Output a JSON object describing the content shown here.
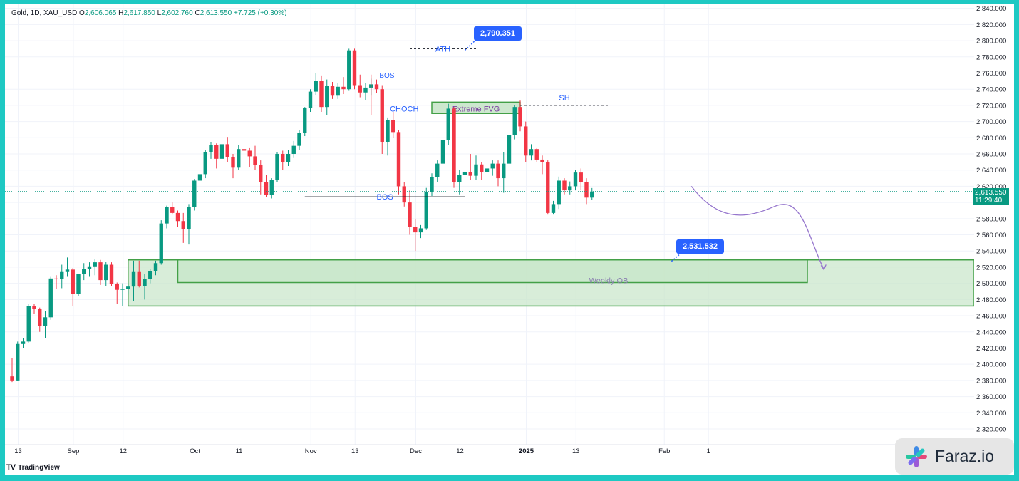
{
  "header": {
    "symbol": "Gold, 1D, XAU_USD",
    "open_label": "O",
    "open": "2,606.065",
    "high_label": "H",
    "high": "2,617.850",
    "low_label": "L",
    "low": "2,602.760",
    "close_label": "C",
    "close": "2,613.550",
    "change": "+7.725 (+0.30%)"
  },
  "colors": {
    "up": "#089981",
    "down": "#f23645",
    "zone_fill": "#c8e6c9",
    "zone_stroke": "#43a047",
    "annotation": "#2962ff",
    "arrow": "#9575cd",
    "frame": "#1ec9c3"
  },
  "branding": {
    "tradingview": "TradingView",
    "watermark": "Faraz.io",
    "watermark_icon": "asterisk-logo-icon"
  },
  "price_label": {
    "price": "2,613.550",
    "countdown": "11:29:40"
  },
  "callouts": {
    "ath_value": "2,790.351",
    "ob_value": "2,531.532"
  },
  "chart_data": {
    "type": "candlestick",
    "title": "Gold, 1D, XAU_USD",
    "ylim": [
      2305,
      2845
    ],
    "y_ticks": [
      2320,
      2340,
      2360,
      2380,
      2400,
      2420,
      2440,
      2460,
      2480,
      2500,
      2520,
      2540,
      2560,
      2580,
      2600,
      2620,
      2640,
      2660,
      2680,
      2700,
      2720,
      2740,
      2760,
      2780,
      2800,
      2820,
      2840
    ],
    "x_ticks": [
      {
        "label": "13",
        "index": 2
      },
      {
        "label": "Sep",
        "index": 12
      },
      {
        "label": "12",
        "index": 21
      },
      {
        "label": "Oct",
        "index": 34
      },
      {
        "label": "11",
        "index": 42
      },
      {
        "label": "Nov",
        "index": 55
      },
      {
        "label": "13",
        "index": 63
      },
      {
        "label": "Dec",
        "index": 74
      },
      {
        "label": "12",
        "index": 82
      },
      {
        "label": "2025",
        "index": 94
      },
      {
        "label": "13",
        "index": 103
      },
      {
        "label": "Feb",
        "index": 119
      },
      {
        "label": "1",
        "index": 127
      }
    ],
    "candles": [
      [
        2385,
        2408,
        2378,
        2380
      ],
      [
        2380,
        2428,
        2379,
        2425
      ],
      [
        2425,
        2432,
        2420,
        2428
      ],
      [
        2428,
        2475,
        2426,
        2472
      ],
      [
        2472,
        2475,
        2462,
        2468
      ],
      [
        2468,
        2470,
        2440,
        2447
      ],
      [
        2447,
        2466,
        2432,
        2458
      ],
      [
        2458,
        2508,
        2455,
        2506
      ],
      [
        2506,
        2510,
        2493,
        2505
      ],
      [
        2505,
        2523,
        2494,
        2514
      ],
      [
        2514,
        2532,
        2508,
        2517
      ],
      [
        2517,
        2519,
        2472,
        2487
      ],
      [
        2487,
        2512,
        2484,
        2512
      ],
      [
        2512,
        2525,
        2504,
        2518
      ],
      [
        2518,
        2526,
        2508,
        2521
      ],
      [
        2521,
        2530,
        2510,
        2526
      ],
      [
        2526,
        2529,
        2498,
        2504
      ],
      [
        2504,
        2527,
        2497,
        2523
      ],
      [
        2523,
        2526,
        2497,
        2499
      ],
      [
        2499,
        2501,
        2475,
        2492
      ],
      [
        2492,
        2500,
        2472,
        2493
      ],
      [
        2493,
        2500,
        2486,
        2496
      ],
      [
        2496,
        2528,
        2478,
        2514
      ],
      [
        2514,
        2528,
        2495,
        2497
      ],
      [
        2497,
        2512,
        2480,
        2505
      ],
      [
        2505,
        2518,
        2500,
        2515
      ],
      [
        2515,
        2528,
        2510,
        2525
      ],
      [
        2525,
        2578,
        2523,
        2574
      ],
      [
        2574,
        2596,
        2568,
        2594
      ],
      [
        2594,
        2600,
        2585,
        2587
      ],
      [
        2587,
        2590,
        2570,
        2577
      ],
      [
        2577,
        2587,
        2550,
        2567
      ],
      [
        2567,
        2598,
        2548,
        2594
      ],
      [
        2594,
        2629,
        2590,
        2627
      ],
      [
        2627,
        2638,
        2622,
        2635
      ],
      [
        2635,
        2665,
        2630,
        2662
      ],
      [
        2662,
        2675,
        2654,
        2671
      ],
      [
        2671,
        2673,
        2642,
        2654
      ],
      [
        2654,
        2686,
        2650,
        2672
      ],
      [
        2672,
        2681,
        2650,
        2656
      ],
      [
        2656,
        2660,
        2630,
        2643
      ],
      [
        2643,
        2671,
        2640,
        2666
      ],
      [
        2666,
        2670,
        2652,
        2664
      ],
      [
        2664,
        2668,
        2644,
        2657
      ],
      [
        2657,
        2670,
        2640,
        2646
      ],
      [
        2646,
        2652,
        2610,
        2625
      ],
      [
        2625,
        2634,
        2607,
        2609
      ],
      [
        2609,
        2630,
        2605,
        2628
      ],
      [
        2628,
        2662,
        2625,
        2660
      ],
      [
        2660,
        2664,
        2640,
        2650
      ],
      [
        2650,
        2665,
        2645,
        2660
      ],
      [
        2660,
        2676,
        2655,
        2670
      ],
      [
        2670,
        2690,
        2665,
        2686
      ],
      [
        2686,
        2718,
        2682,
        2717
      ],
      [
        2717,
        2740,
        2712,
        2737
      ],
      [
        2737,
        2760,
        2733,
        2750
      ],
      [
        2750,
        2757,
        2712,
        2718
      ],
      [
        2718,
        2752,
        2708,
        2744
      ],
      [
        2744,
        2749,
        2728,
        2732
      ],
      [
        2732,
        2748,
        2728,
        2743
      ],
      [
        2743,
        2755,
        2734,
        2740
      ],
      [
        2740,
        2790,
        2738,
        2788
      ],
      [
        2788,
        2790,
        2740,
        2745
      ],
      [
        2745,
        2758,
        2730,
        2736
      ],
      [
        2736,
        2748,
        2727,
        2742
      ],
      [
        2742,
        2753,
        2732,
        2746
      ],
      [
        2746,
        2752,
        2735,
        2740
      ],
      [
        2740,
        2745,
        2660,
        2675
      ],
      [
        2675,
        2705,
        2658,
        2702
      ],
      [
        2702,
        2712,
        2680,
        2687
      ],
      [
        2687,
        2690,
        2610,
        2620
      ],
      [
        2620,
        2625,
        2595,
        2600
      ],
      [
        2600,
        2615,
        2560,
        2570
      ],
      [
        2570,
        2580,
        2540,
        2563
      ],
      [
        2563,
        2572,
        2556,
        2568
      ],
      [
        2568,
        2618,
        2566,
        2613
      ],
      [
        2613,
        2636,
        2608,
        2631
      ],
      [
        2631,
        2652,
        2625,
        2648
      ],
      [
        2648,
        2682,
        2645,
        2677
      ],
      [
        2677,
        2722,
        2671,
        2716
      ],
      [
        2716,
        2718,
        2618,
        2625
      ],
      [
        2625,
        2640,
        2610,
        2634
      ],
      [
        2634,
        2650,
        2625,
        2638
      ],
      [
        2638,
        2660,
        2628,
        2633
      ],
      [
        2633,
        2658,
        2628,
        2647
      ],
      [
        2647,
        2650,
        2628,
        2638
      ],
      [
        2638,
        2656,
        2630,
        2642
      ],
      [
        2642,
        2652,
        2633,
        2648
      ],
      [
        2648,
        2652,
        2620,
        2630
      ],
      [
        2630,
        2662,
        2612,
        2648
      ],
      [
        2648,
        2685,
        2642,
        2683
      ],
      [
        2683,
        2720,
        2678,
        2718
      ],
      [
        2718,
        2726,
        2688,
        2694
      ],
      [
        2694,
        2700,
        2650,
        2658
      ],
      [
        2658,
        2672,
        2652,
        2666
      ],
      [
        2666,
        2668,
        2650,
        2653
      ],
      [
        2653,
        2658,
        2635,
        2650
      ],
      [
        2650,
        2652,
        2585,
        2587
      ],
      [
        2587,
        2602,
        2585,
        2598
      ],
      [
        2598,
        2632,
        2592,
        2627
      ],
      [
        2627,
        2630,
        2610,
        2615
      ],
      [
        2615,
        2626,
        2610,
        2620
      ],
      [
        2620,
        2640,
        2615,
        2637
      ],
      [
        2637,
        2642,
        2615,
        2625
      ],
      [
        2625,
        2630,
        2598,
        2606
      ],
      [
        2606,
        2617.85,
        2602.76,
        2613.55
      ]
    ],
    "last_price": 2613.55,
    "zones": [
      {
        "label": "Weekly OB",
        "type": "order-block",
        "top": 2529,
        "bottom": 2472
      },
      {
        "label": "",
        "type": "order-block-inner",
        "top": 2529,
        "bottom": 2501
      },
      {
        "label": "Extreme FVG",
        "type": "fair-value-gap",
        "top": 2724,
        "bottom": 2710
      }
    ],
    "annotations": [
      {
        "label": "ATH",
        "value": 2790
      },
      {
        "label": "BOS",
        "value": 2758
      },
      {
        "label": "CHOCH",
        "value": 2708
      },
      {
        "label": "SH",
        "value": 2720
      },
      {
        "label": "BOS",
        "value": 2607
      }
    ]
  }
}
